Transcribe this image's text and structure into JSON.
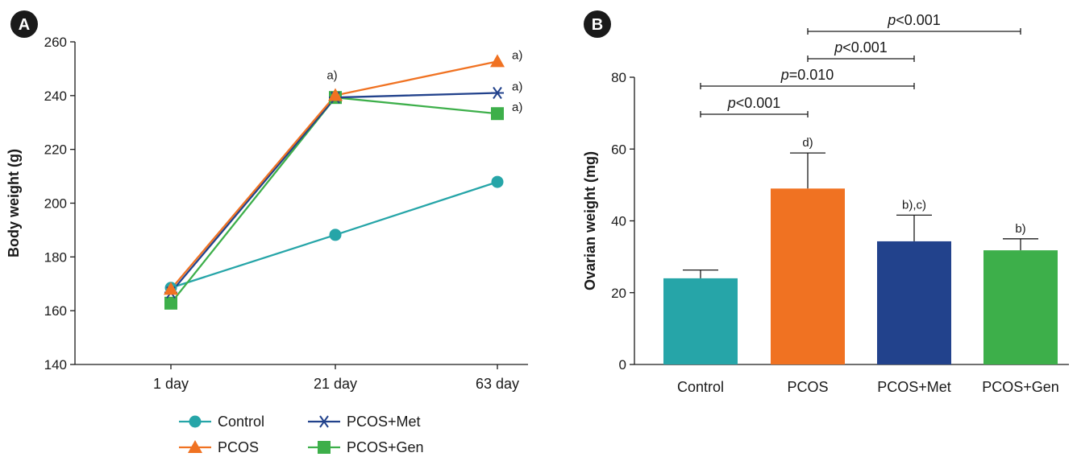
{
  "panels": {
    "a_label": "A",
    "b_label": "B"
  },
  "chart_data": [
    {
      "type": "line",
      "panel": "A",
      "x": [
        "1 day",
        "21 day",
        "63 day"
      ],
      "ylabel": "Body weight (g)",
      "ylim": [
        140,
        260
      ],
      "yticks": [
        140,
        160,
        180,
        200,
        220,
        240,
        260
      ],
      "grid": false,
      "legend_position": "bottom",
      "series": [
        {
          "name": "Control",
          "marker": "circle",
          "color": "#26a5a8",
          "values": [
            168.5,
            188.2,
            207.9
          ]
        },
        {
          "name": "PCOS",
          "marker": "triangle",
          "color": "#f07222",
          "values": [
            168.0,
            240.1,
            252.7
          ]
        },
        {
          "name": "PCOS+Met",
          "marker": "asterisk",
          "color": "#22428c",
          "values": [
            166.8,
            239.3,
            241.0
          ]
        },
        {
          "name": "PCOS+Gen",
          "marker": "square",
          "color": "#3daf4a",
          "values": [
            162.8,
            239.3,
            233.3
          ]
        }
      ],
      "annotations": [
        {
          "x": "21 day",
          "text": "a)"
        },
        {
          "x": "63 day",
          "series": "PCOS",
          "text": "a)"
        },
        {
          "x": "63 day",
          "series": "PCOS+Met",
          "text": "a)"
        },
        {
          "x": "63 day",
          "series": "PCOS+Gen",
          "text": "a)"
        }
      ]
    },
    {
      "type": "bar",
      "panel": "B",
      "categories": [
        "Control",
        "PCOS",
        "PCOS+Met",
        "PCOS+Gen"
      ],
      "values": [
        24.0,
        49.0,
        34.3,
        31.8
      ],
      "errors": [
        2.3,
        9.9,
        7.3,
        3.2
      ],
      "colors": [
        "#26a5a8",
        "#f07222",
        "#22428c",
        "#3daf4a"
      ],
      "bar_labels": [
        "",
        "d)",
        "b),c)",
        "b)"
      ],
      "ylabel": "Ovarian weight (mg)",
      "ylim": [
        0,
        80
      ],
      "yticks": [
        0,
        20,
        40,
        60,
        80
      ],
      "grid": false,
      "comparisons": [
        {
          "from": "Control",
          "to": "PCOS",
          "p_symbol": "p",
          "p_text": "<0.001"
        },
        {
          "from": "Control",
          "to": "PCOS+Met",
          "p_symbol": "p",
          "p_text": "=0.010"
        },
        {
          "from": "PCOS",
          "to": "PCOS+Met",
          "p_symbol": "p",
          "p_text": "<0.001"
        },
        {
          "from": "PCOS",
          "to": "PCOS+Gen",
          "p_symbol": "p",
          "p_text": "<0.001"
        }
      ]
    }
  ]
}
